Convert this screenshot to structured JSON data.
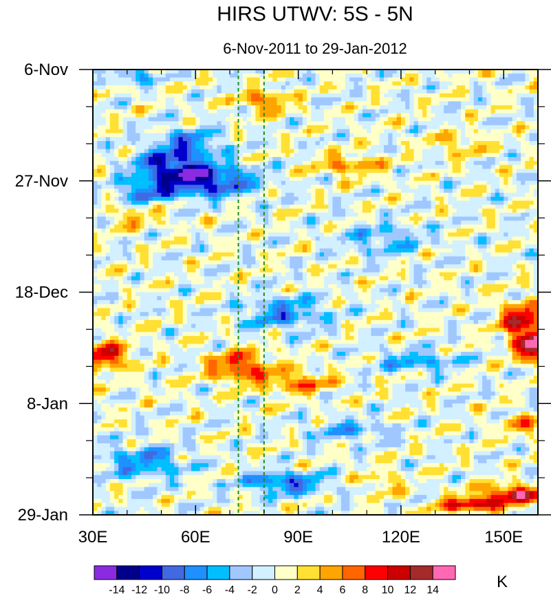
{
  "chart_data": {
    "type": "heatmap",
    "title": "HIRS UTWV: 5S - 5N",
    "subtitle": "6-Nov-2011 to 29-Jan-2012",
    "x_axis": {
      "range": [
        30,
        160
      ],
      "ticks": [
        {
          "value": 30,
          "label": "30E"
        },
        {
          "value": 60,
          "label": "60E"
        },
        {
          "value": 90,
          "label": "90E"
        },
        {
          "value": 120,
          "label": "120E"
        },
        {
          "value": 150,
          "label": "150E"
        }
      ],
      "minor_step": 10
    },
    "y_axis": {
      "range_days_since_start": [
        0,
        84
      ],
      "ticks": [
        {
          "day": 0,
          "label": "6-Nov"
        },
        {
          "day": 21,
          "label": "27-Nov"
        },
        {
          "day": 42,
          "label": "18-Dec"
        },
        {
          "day": 63,
          "label": "8-Jan"
        },
        {
          "day": 84,
          "label": "29-Jan"
        }
      ],
      "minor_step_days": 7
    },
    "reference_lines": [
      {
        "longitude": 72.5,
        "style": "dashed",
        "color": "#228b22"
      },
      {
        "longitude": 80,
        "style": "dashed",
        "color": "#228b22"
      }
    ],
    "colorbar": {
      "unit": "K",
      "levels": [
        -14,
        -12,
        -10,
        -8,
        -6,
        -4,
        -2,
        0,
        2,
        4,
        6,
        8,
        10,
        12,
        14
      ],
      "labels": [
        "-14",
        "-12",
        "-10",
        "-8",
        "-6",
        "-4",
        "-2",
        "0",
        "2",
        "4",
        "6",
        "8",
        "10",
        "12",
        "14"
      ],
      "colors": [
        "#8a2be2",
        "#00008b",
        "#0000cd",
        "#4169e1",
        "#1e90ff",
        "#00bfff",
        "#a0c8ff",
        "#d2f0ff",
        "#ffffc8",
        "#ffe033",
        "#ffa500",
        "#ff6600",
        "#ff0000",
        "#cc0000",
        "#a52a2a",
        "#ff69b4"
      ]
    },
    "features": [
      {
        "kind": "negative",
        "day": 1,
        "lon": 42,
        "value": -7,
        "dday": 1.5,
        "dlon": 5
      },
      {
        "kind": "negative",
        "day": 21,
        "lon": 63,
        "value": -12,
        "dday": 3,
        "dlon": 14
      },
      {
        "kind": "negative",
        "day": 18,
        "lon": 52,
        "value": -9,
        "dday": 3,
        "dlon": 10
      },
      {
        "kind": "negative",
        "day": 14,
        "lon": 58,
        "value": -7,
        "dday": 3,
        "dlon": 9
      },
      {
        "kind": "negative",
        "day": 23,
        "lon": 45,
        "value": -7,
        "dday": 2,
        "dlon": 8
      },
      {
        "kind": "negative",
        "day": 46,
        "lon": 86,
        "value": -7,
        "dday": 3,
        "dlon": 12
      },
      {
        "kind": "negative",
        "day": 55,
        "lon": 125,
        "value": -6,
        "dday": 2,
        "dlon": 12
      },
      {
        "kind": "negative",
        "day": 74,
        "lon": 45,
        "value": -7,
        "dday": 3,
        "dlon": 12
      },
      {
        "kind": "negative",
        "day": 78,
        "lon": 86,
        "value": -9,
        "dday": 2,
        "dlon": 12
      },
      {
        "kind": "negative",
        "day": 32,
        "lon": 115,
        "value": -5,
        "dday": 3,
        "dlon": 12
      },
      {
        "kind": "negative",
        "day": 68,
        "lon": 105,
        "value": -5,
        "dday": 2,
        "dlon": 12
      },
      {
        "kind": "positive",
        "day": 6,
        "lon": 80,
        "value": 7,
        "dday": 2,
        "dlon": 7
      },
      {
        "kind": "positive",
        "day": 18,
        "lon": 105,
        "value": 6,
        "dday": 2,
        "dlon": 10
      },
      {
        "kind": "positive",
        "day": 14,
        "lon": 137,
        "value": 4,
        "dday": 2,
        "dlon": 8
      },
      {
        "kind": "positive",
        "day": 54,
        "lon": 34,
        "value": 11,
        "dday": 2.5,
        "dlon": 6
      },
      {
        "kind": "positive",
        "day": 56,
        "lon": 73,
        "value": 9,
        "dday": 3,
        "dlon": 9
      },
      {
        "kind": "positive",
        "day": 59,
        "lon": 90,
        "value": 7,
        "dday": 2,
        "dlon": 10
      },
      {
        "kind": "positive",
        "day": 52,
        "lon": 159,
        "value": 14,
        "dday": 3,
        "dlon": 6
      },
      {
        "kind": "positive",
        "day": 47,
        "lon": 155,
        "value": 11,
        "dday": 3,
        "dlon": 6
      },
      {
        "kind": "positive",
        "day": 80,
        "lon": 153,
        "value": 13,
        "dday": 1.5,
        "dlon": 8
      },
      {
        "kind": "positive",
        "day": 82,
        "lon": 141,
        "value": 11,
        "dday": 1.5,
        "dlon": 10
      },
      {
        "kind": "positive",
        "day": 78,
        "lon": 115,
        "value": 4,
        "dday": 2,
        "dlon": 6
      },
      {
        "kind": "positive",
        "day": 28,
        "lon": 42,
        "value": 4,
        "dday": 2,
        "dlon": 8
      },
      {
        "kind": "positive",
        "day": 67,
        "lon": 155,
        "value": 6,
        "dday": 2,
        "dlon": 5
      }
    ]
  }
}
